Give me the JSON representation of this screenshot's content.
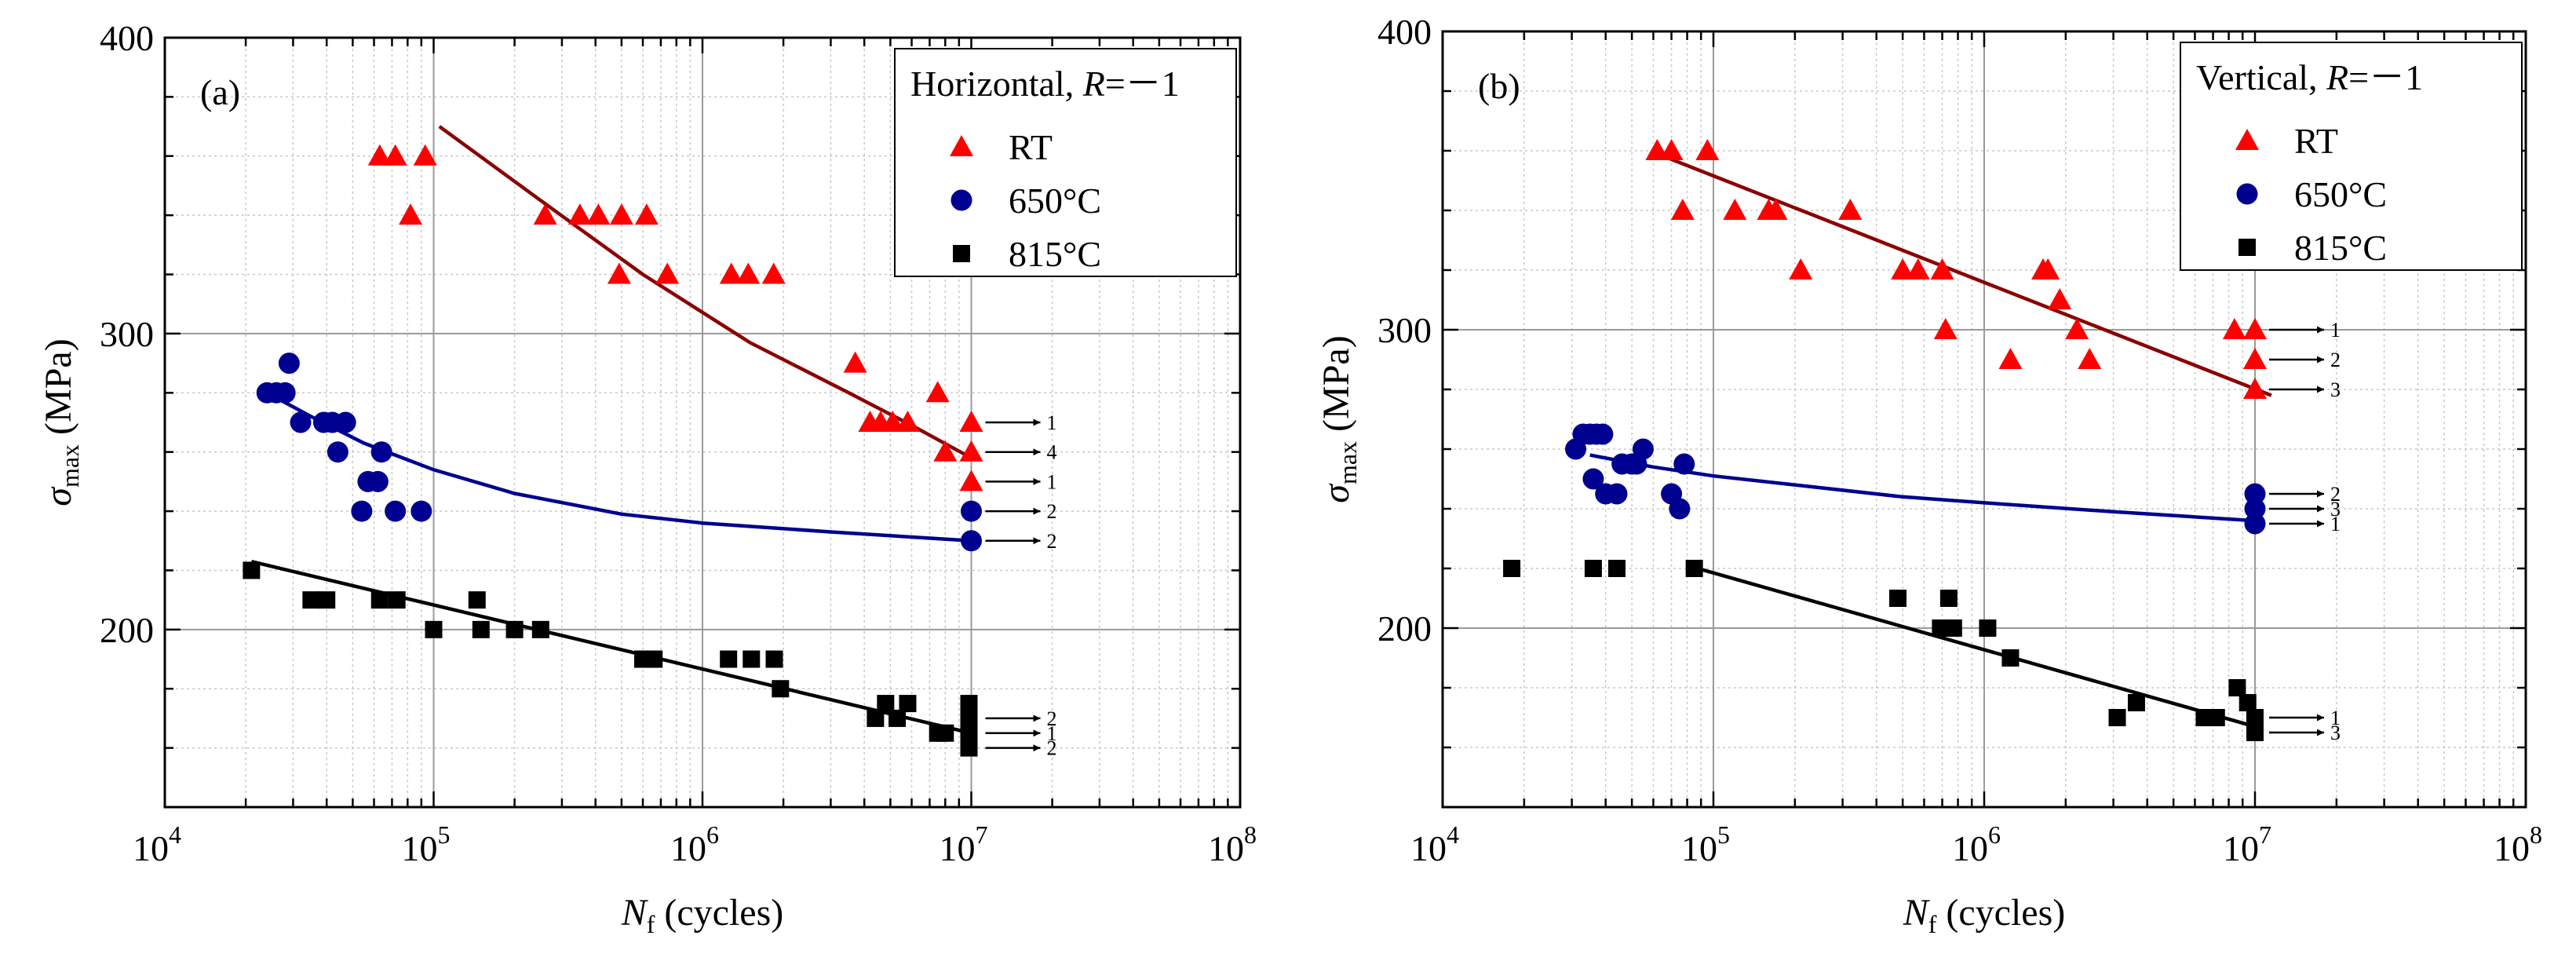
{
  "chart_data": [
    {
      "type": "scatter",
      "panel_label": "(a)",
      "x_scale": "log",
      "xlim": [
        10000,
        100000000
      ],
      "ylim": [
        140,
        400
      ],
      "x_tick_labels": [
        {
          "value": 10000,
          "base": "10",
          "exp": "4"
        },
        {
          "value": 100000,
          "base": "10",
          "exp": "5"
        },
        {
          "value": 1000000,
          "base": "10",
          "exp": "6"
        },
        {
          "value": 10000000,
          "base": "10",
          "exp": "7"
        },
        {
          "value": 100000000,
          "base": "10",
          "exp": "8"
        }
      ],
      "y_ticks": [
        200,
        300,
        400
      ],
      "xlabel": {
        "main": "N",
        "sub": "f",
        "rest": " (cycles)"
      },
      "ylabel": {
        "main": "σ",
        "sub": "max",
        "rest": " (MPa)"
      },
      "legend": {
        "title": "Horizontal, ",
        "title_var": "R",
        "title_rest": "=－1",
        "position": "top-right"
      },
      "series": [
        {
          "name": "RT",
          "marker": "triangle",
          "color": "#ff0000",
          "points": [
            [
              63000,
              360
            ],
            [
              72000,
              360
            ],
            [
              93000,
              360
            ],
            [
              82000,
              340
            ],
            [
              260000,
              340
            ],
            [
              350000,
              340
            ],
            [
              410000,
              340
            ],
            [
              500000,
              340
            ],
            [
              620000,
              340
            ],
            [
              490000,
              320
            ],
            [
              740000,
              320
            ],
            [
              1280000,
              320
            ],
            [
              1480000,
              320
            ],
            [
              1840000,
              320
            ],
            [
              3700000,
              290
            ],
            [
              4200000,
              270
            ],
            [
              4600000,
              270
            ],
            [
              5100000,
              270
            ],
            [
              5800000,
              270
            ],
            [
              7500000,
              280
            ],
            [
              8000000,
              260
            ],
            [
              10000000,
              270
            ],
            [
              10000000,
              260
            ],
            [
              10000000,
              250
            ]
          ],
          "fit": {
            "color": "#8b0000",
            "points": [
              [
                105000,
                370
              ],
              [
                250000,
                345
              ],
              [
                600000,
                320
              ],
              [
                1500000,
                297
              ],
              [
                3500000,
                280
              ],
              [
                6000000,
                269
              ],
              [
                10000000,
                258
              ]
            ]
          },
          "runouts": [
            {
              "x": 10000000,
              "y": 270,
              "label": "1"
            },
            {
              "x": 10000000,
              "y": 260,
              "label": "4"
            },
            {
              "x": 10000000,
              "y": 250,
              "label": "1"
            }
          ]
        },
        {
          "name": "650°C",
          "marker": "circle",
          "color": "#000090",
          "points": [
            [
              24000,
              280
            ],
            [
              26000,
              280
            ],
            [
              28000,
              280
            ],
            [
              29000,
              290
            ],
            [
              32000,
              270
            ],
            [
              39000,
              270
            ],
            [
              47000,
              270
            ],
            [
              42000,
              270
            ],
            [
              44000,
              260
            ],
            [
              64000,
              260
            ],
            [
              57000,
              250
            ],
            [
              62000,
              250
            ],
            [
              54000,
              240
            ],
            [
              72000,
              240
            ],
            [
              90000,
              240
            ],
            [
              10000000,
              240
            ],
            [
              10000000,
              230
            ]
          ],
          "fit": {
            "color": "#000090",
            "points": [
              [
                24000,
                280
              ],
              [
                35000,
                272
              ],
              [
                55000,
                263
              ],
              [
                100000,
                254
              ],
              [
                200000,
                246
              ],
              [
                500000,
                239
              ],
              [
                1000000,
                236
              ],
              [
                3000000,
                233
              ],
              [
                10000000,
                230
              ]
            ]
          },
          "runouts": [
            {
              "x": 10000000,
              "y": 240,
              "label": "2"
            },
            {
              "x": 10000000,
              "y": 230,
              "label": "2"
            }
          ]
        },
        {
          "name": "815°C",
          "marker": "square",
          "color": "#000000",
          "points": [
            [
              21000,
              220
            ],
            [
              35000,
              210
            ],
            [
              40000,
              210
            ],
            [
              63000,
              210
            ],
            [
              73000,
              210
            ],
            [
              100000,
              200
            ],
            [
              145000,
              210
            ],
            [
              150000,
              200
            ],
            [
              200000,
              200
            ],
            [
              250000,
              200
            ],
            [
              600000,
              190
            ],
            [
              660000,
              190
            ],
            [
              1250000,
              190
            ],
            [
              1520000,
              190
            ],
            [
              1850000,
              190
            ],
            [
              1950000,
              180
            ],
            [
              4400000,
              170
            ],
            [
              4800000,
              175
            ],
            [
              5300000,
              170
            ],
            [
              5800000,
              175
            ],
            [
              7500000,
              165
            ],
            [
              8000000,
              165
            ],
            [
              9800000,
              175
            ],
            [
              9800000,
              170
            ],
            [
              9800000,
              165
            ],
            [
              9800000,
              160
            ]
          ],
          "fit": {
            "color": "#000000",
            "points": [
              [
                21000,
                223
              ],
              [
                10000000,
                165
              ]
            ]
          },
          "runouts": [
            {
              "x": 10000000,
              "y": 170,
              "label": "2"
            },
            {
              "x": 10000000,
              "y": 165,
              "label": "1"
            },
            {
              "x": 10000000,
              "y": 160,
              "label": "2"
            }
          ]
        }
      ]
    },
    {
      "type": "scatter",
      "panel_label": "(b)",
      "x_scale": "log",
      "xlim": [
        10000,
        100000000
      ],
      "ylim": [
        140,
        400
      ],
      "x_tick_labels": [
        {
          "value": 10000,
          "base": "10",
          "exp": "4"
        },
        {
          "value": 100000,
          "base": "10",
          "exp": "5"
        },
        {
          "value": 1000000,
          "base": "10",
          "exp": "6"
        },
        {
          "value": 10000000,
          "base": "10",
          "exp": "7"
        },
        {
          "value": 100000000,
          "base": "10",
          "exp": "8"
        }
      ],
      "y_ticks": [
        200,
        300,
        400
      ],
      "xlabel": {
        "main": "N",
        "sub": "f",
        "rest": " (cycles)"
      },
      "ylabel": {
        "main": "σ",
        "sub": "max",
        "rest": " (MPa)"
      },
      "legend": {
        "title": "Vertical, ",
        "title_var": "R",
        "title_rest": "=－1",
        "position": "top-right"
      },
      "series": [
        {
          "name": "RT",
          "marker": "triangle",
          "color": "#ff0000",
          "points": [
            [
              62000,
              360
            ],
            [
              70000,
              360
            ],
            [
              95000,
              360
            ],
            [
              77000,
              340
            ],
            [
              120000,
              340
            ],
            [
              160000,
              340
            ],
            [
              170000,
              340
            ],
            [
              320000,
              340
            ],
            [
              210000,
              320
            ],
            [
              500000,
              320
            ],
            [
              570000,
              320
            ],
            [
              700000,
              320
            ],
            [
              1650000,
              320
            ],
            [
              1720000,
              320
            ],
            [
              1900000,
              310
            ],
            [
              720000,
              300
            ],
            [
              2200000,
              300
            ],
            [
              2450000,
              290
            ],
            [
              1250000,
              290
            ],
            [
              8400000,
              300
            ],
            [
              10000000,
              300
            ],
            [
              10000000,
              290
            ],
            [
              10000000,
              280
            ]
          ],
          "fit": {
            "color": "#8b0000",
            "points": [
              [
                62000,
                359
              ],
              [
                11500000,
                278
              ]
            ]
          },
          "runouts": [
            {
              "x": 10000000,
              "y": 300,
              "label": "1"
            },
            {
              "x": 10000000,
              "y": 290,
              "label": "2"
            },
            {
              "x": 10000000,
              "y": 280,
              "label": "3"
            }
          ]
        },
        {
          "name": "650°C",
          "marker": "circle",
          "color": "#000090",
          "points": [
            [
              31000,
              260
            ],
            [
              33000,
              265
            ],
            [
              35000,
              265
            ],
            [
              37000,
              265
            ],
            [
              39000,
              265
            ],
            [
              40000,
              245
            ],
            [
              36000,
              250
            ],
            [
              44000,
              245
            ],
            [
              46000,
              255
            ],
            [
              50000,
              255
            ],
            [
              55000,
              260
            ],
            [
              52000,
              255
            ],
            [
              70000,
              245
            ],
            [
              75000,
              240
            ],
            [
              78000,
              255
            ],
            [
              10000000,
              245
            ],
            [
              10000000,
              240
            ],
            [
              10000000,
              235
            ]
          ],
          "fit": {
            "color": "#000090",
            "points": [
              [
                35000,
                258
              ],
              [
                60000,
                254
              ],
              [
                100000,
                251
              ],
              [
                200000,
                248
              ],
              [
                500000,
                244
              ],
              [
                1000000,
                242
              ],
              [
                3000000,
                239
              ],
              [
                10000000,
                236
              ]
            ]
          },
          "runouts": [
            {
              "x": 10000000,
              "y": 245,
              "label": "2"
            },
            {
              "x": 10000000,
              "y": 240,
              "label": "3"
            },
            {
              "x": 10000000,
              "y": 235,
              "label": "1"
            }
          ]
        },
        {
          "name": "815°C",
          "marker": "square",
          "color": "#000000",
          "points": [
            [
              18000,
              220
            ],
            [
              36000,
              220
            ],
            [
              44000,
              220
            ],
            [
              85000,
              220
            ],
            [
              480000,
              210
            ],
            [
              690000,
              200
            ],
            [
              740000,
              210
            ],
            [
              770000,
              200
            ],
            [
              1030000,
              200
            ],
            [
              1250000,
              190
            ],
            [
              3100000,
              170
            ],
            [
              3650000,
              175
            ],
            [
              6500000,
              170
            ],
            [
              7200000,
              170
            ],
            [
              8600000,
              180
            ],
            [
              9400000,
              175
            ],
            [
              10000000,
              170
            ],
            [
              10000000,
              165
            ]
          ],
          "fit": {
            "color": "#000000",
            "points": [
              [
                80000,
                221
              ],
              [
                10000000,
                167
              ]
            ]
          },
          "runouts": [
            {
              "x": 10000000,
              "y": 170,
              "label": "1"
            },
            {
              "x": 10000000,
              "y": 165,
              "label": "3"
            }
          ]
        }
      ]
    }
  ]
}
